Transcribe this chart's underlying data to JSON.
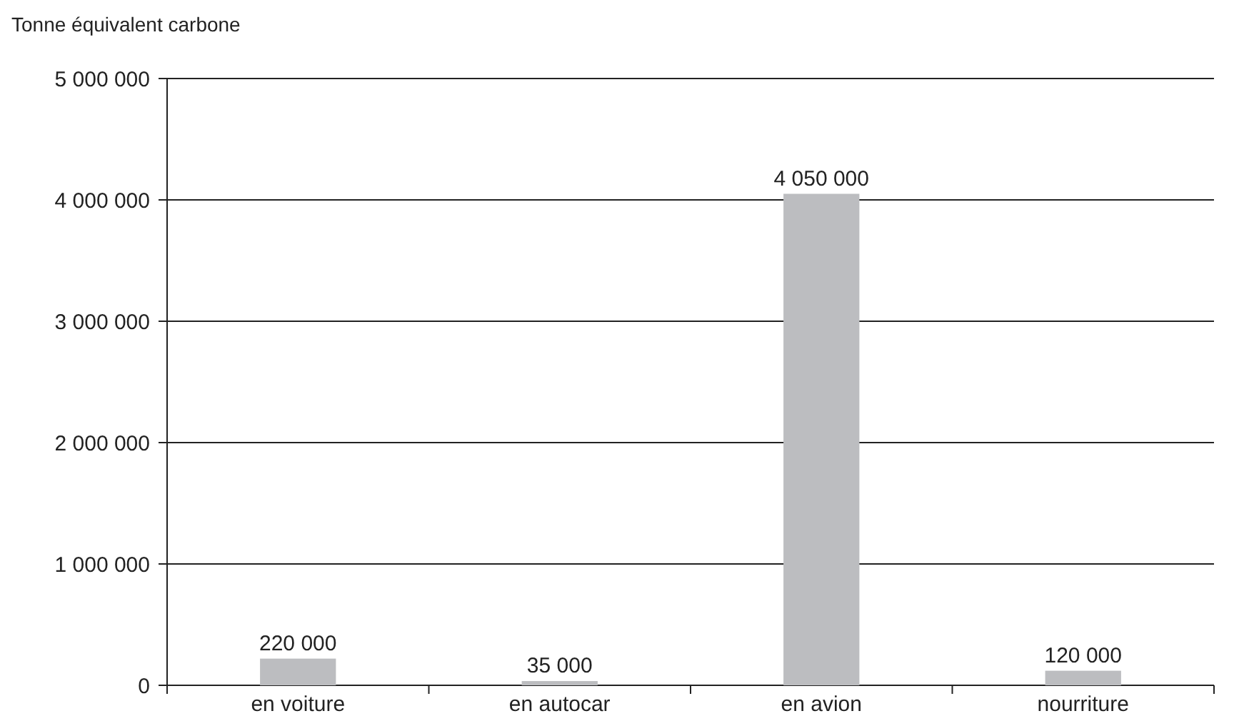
{
  "chart_data": {
    "type": "bar",
    "ylabel": "Tonne équivalent carbone",
    "categories": [
      "en voiture",
      "en autocar",
      "en avion",
      "nourriture"
    ],
    "values": [
      220000,
      35000,
      4050000,
      120000
    ],
    "value_labels": [
      "220 000",
      "35 000",
      "4 050 000",
      "120 000"
    ],
    "color": "#bcbdc0",
    "ylim": [
      0,
      5000000
    ],
    "yticks": [
      {
        "value": 0,
        "label": "0"
      },
      {
        "value": 1000000,
        "label": "1 000 000"
      },
      {
        "value": 2000000,
        "label": "2 000 000"
      },
      {
        "value": 3000000,
        "label": "3 000 000"
      },
      {
        "value": 4000000,
        "label": "4 000 000"
      },
      {
        "value": 5000000,
        "label": "5 000 000"
      }
    ],
    "grid": "y"
  }
}
